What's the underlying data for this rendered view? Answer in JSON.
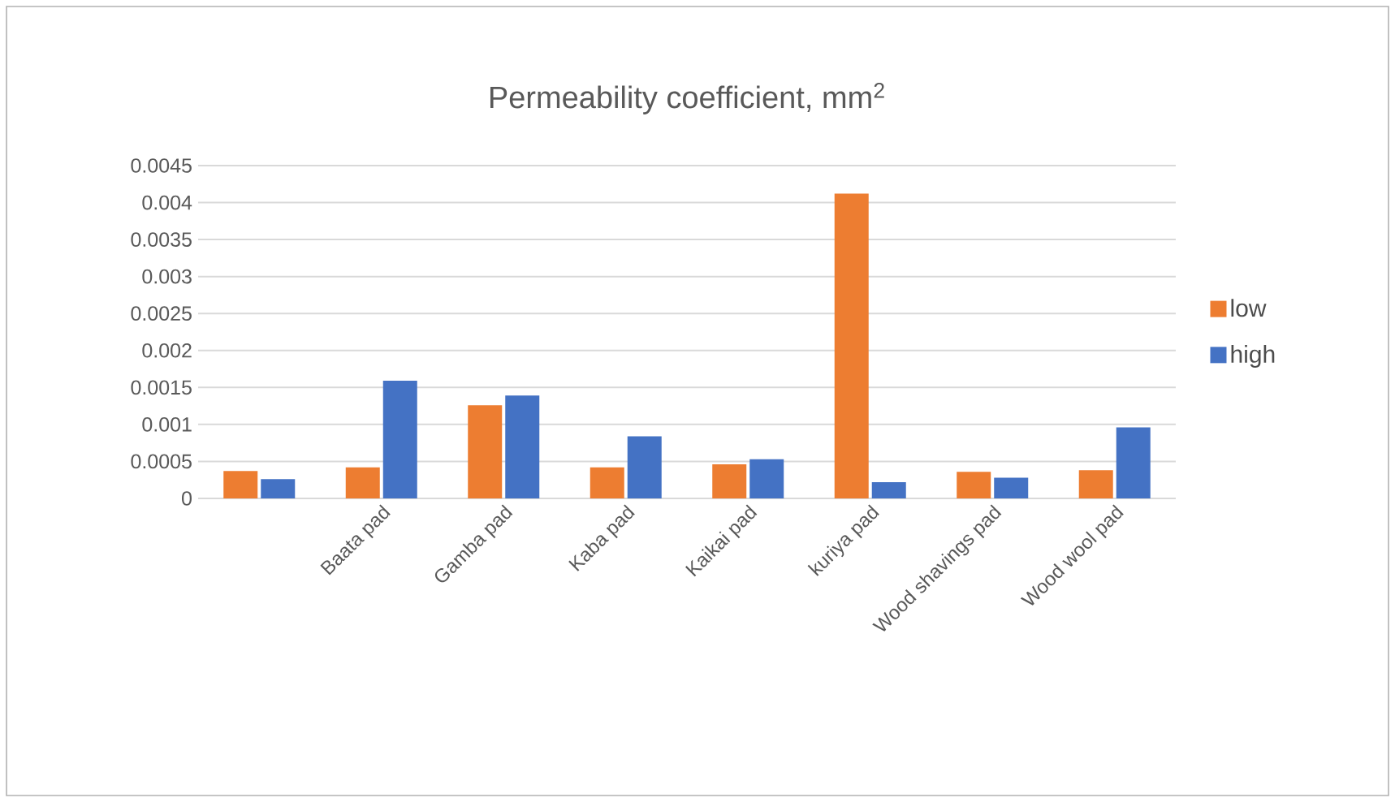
{
  "chart_data": {
    "type": "bar",
    "title": "Permeability coefficient, mm$^{2}$",
    "categories": [
      null,
      "Baata pad",
      "Gamba pad",
      "Kaba pad",
      "Kaikai pad",
      "kuriya pad",
      "Wood shavings pad",
      "Wood wool pad"
    ],
    "series": [
      {
        "name": "low",
        "color": "#ed7d31",
        "values": [
          0.00037,
          0.00042,
          0.00126,
          0.00042,
          0.00046,
          0.00412,
          0.00036,
          0.00038
        ]
      },
      {
        "name": "high",
        "color": "#4472c4",
        "values": [
          0.00026,
          0.00159,
          0.00139,
          0.00084,
          0.00053,
          0.00022,
          0.00028,
          0.00096
        ]
      }
    ],
    "ylim": [
      0,
      0.0045
    ],
    "yticks": [
      0,
      0.0005,
      0.001,
      0.0015,
      0.002,
      0.0025,
      0.003,
      0.0035,
      0.004,
      0.0045
    ],
    "grid": "y",
    "legend": "right"
  }
}
